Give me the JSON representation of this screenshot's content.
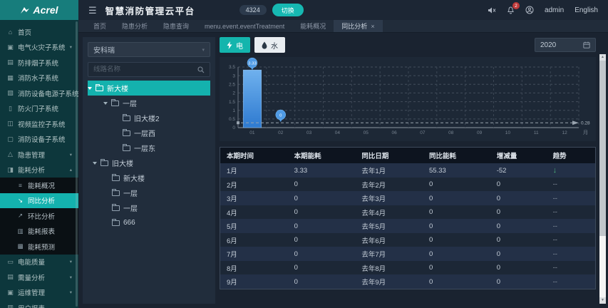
{
  "colors": {
    "accent": "#14b2ae",
    "bar_blue": "#4f9ae4",
    "trend_down_green": "#4db07a",
    "notification_red": "#bf3a3a"
  },
  "header": {
    "logo_text": "Acrel",
    "title": "智慧消防管理云平台",
    "badge": "4324",
    "switch_label": "切换",
    "notification_count": "2",
    "username": "admin",
    "language": "English"
  },
  "tabs": [
    {
      "name": "home",
      "label": "首页",
      "active": false
    },
    {
      "name": "hazard-analysis",
      "label": "隐患分析",
      "active": false
    },
    {
      "name": "hazard-query",
      "label": "隐患查询",
      "active": false
    },
    {
      "name": "event-treatment",
      "label": "menu.event.eventTreatment",
      "active": false
    },
    {
      "name": "energy-overview",
      "label": "能耗概况",
      "active": false
    },
    {
      "name": "yoy-analysis",
      "label": "同比分析",
      "active": true,
      "closable": true,
      "close_glyph": "×"
    }
  ],
  "sidebar": {
    "items": [
      {
        "name": "home",
        "label": "首页",
        "icon": "⌂"
      },
      {
        "name": "electric-fire",
        "label": "电气火灾子系统",
        "icon": "▣",
        "arrow": "down"
      },
      {
        "name": "smoke-control",
        "label": "防排烟子系统",
        "icon": "▤"
      },
      {
        "name": "fire-water",
        "label": "消防水子系统",
        "icon": "▦"
      },
      {
        "name": "fire-device-power",
        "label": "消防设备电源子系统",
        "icon": "▧"
      },
      {
        "name": "fire-door",
        "label": "防火门子系统",
        "icon": "▯"
      },
      {
        "name": "video-monitor",
        "label": "视频监控子系统",
        "icon": "◫"
      },
      {
        "name": "fire-device",
        "label": "消防设备子系统",
        "icon": "▢"
      },
      {
        "name": "hazard-mgmt",
        "label": "隐患管理",
        "icon": "△",
        "arrow": "down"
      },
      {
        "name": "energy-analysis",
        "label": "能耗分析",
        "icon": "◨",
        "arrow": "up",
        "expanded": true,
        "children": [
          {
            "name": "energy-overview",
            "label": "能耗概况",
            "icon": "≡"
          },
          {
            "name": "yoy-analysis",
            "label": "同比分析",
            "icon": "↘",
            "active": true
          },
          {
            "name": "mom-analysis",
            "label": "环比分析",
            "icon": "↗"
          },
          {
            "name": "energy-report",
            "label": "能耗报表",
            "icon": "▥"
          },
          {
            "name": "energy-forecast",
            "label": "能耗预测",
            "icon": "▩"
          }
        ]
      },
      {
        "name": "power-quality",
        "label": "电能质量",
        "icon": "▭",
        "arrow": "down"
      },
      {
        "name": "demand-analysis",
        "label": "需量分析",
        "icon": "▤",
        "arrow": "down"
      },
      {
        "name": "ops-mgmt",
        "label": "运维管理",
        "icon": "▣",
        "arrow": "down"
      },
      {
        "name": "user-report",
        "label": "用户报表",
        "icon": "▥"
      }
    ]
  },
  "tree_panel": {
    "select_value": "安科瑞",
    "search_placeholder": "线路名称",
    "nodes": [
      {
        "name": "new-building",
        "label": "新大楼",
        "level": 0,
        "caret": true,
        "selected": true
      },
      {
        "name": "floor-1",
        "label": "一层",
        "level": 1,
        "caret": true
      },
      {
        "name": "old-building-2",
        "label": "旧大楼2",
        "level": 2
      },
      {
        "name": "floor-1-west",
        "label": "一层西",
        "level": 2
      },
      {
        "name": "floor-1-east",
        "label": "一层东",
        "level": 2
      },
      {
        "name": "old-building",
        "label": "旧大楼",
        "level": 0,
        "caret": true
      },
      {
        "name": "new-building-2",
        "label": "新大楼",
        "level": 1
      },
      {
        "name": "floor-1b",
        "label": "一层",
        "level": 1
      },
      {
        "name": "floor-1c",
        "label": "一层",
        "level": 1
      },
      {
        "name": "node-666",
        "label": "666",
        "level": 1
      }
    ]
  },
  "toolbar": {
    "electric_label": "电",
    "water_label": "水",
    "year": "2020"
  },
  "chart_data": {
    "type": "bar",
    "title": "",
    "categories": [
      "01",
      "02",
      "03",
      "04",
      "05",
      "06",
      "07",
      "08",
      "09",
      "10",
      "11",
      "12"
    ],
    "values": [
      3.33,
      0,
      0,
      0,
      0,
      0,
      0,
      0,
      0,
      0,
      0,
      0
    ],
    "labeled_points": [
      {
        "category": "01",
        "value": "3.33"
      },
      {
        "category": "02",
        "value": "0"
      }
    ],
    "average_line": 0.28,
    "xlabel": "月",
    "ylabel": "",
    "ylim": [
      0,
      3.5
    ],
    "ytick_step": 0.5,
    "grid": true,
    "legend": false,
    "bar_color": "#4f9ae4"
  },
  "table": {
    "headers": [
      "本期时间",
      "本期能耗",
      "同比日期",
      "同比能耗",
      "增减量",
      "趋势"
    ],
    "rows": [
      [
        "1月",
        "3.33",
        "去年1月",
        "55.33",
        "-52",
        "↓"
      ],
      [
        "2月",
        "0",
        "去年2月",
        "0",
        "0",
        "--"
      ],
      [
        "3月",
        "0",
        "去年3月",
        "0",
        "0",
        "--"
      ],
      [
        "4月",
        "0",
        "去年4月",
        "0",
        "0",
        "--"
      ],
      [
        "5月",
        "0",
        "去年5月",
        "0",
        "0",
        "--"
      ],
      [
        "6月",
        "0",
        "去年6月",
        "0",
        "0",
        "--"
      ],
      [
        "7月",
        "0",
        "去年7月",
        "0",
        "0",
        "--"
      ],
      [
        "8月",
        "0",
        "去年8月",
        "0",
        "0",
        "--"
      ],
      [
        "9月",
        "0",
        "去年9月",
        "0",
        "0",
        "--"
      ]
    ]
  }
}
